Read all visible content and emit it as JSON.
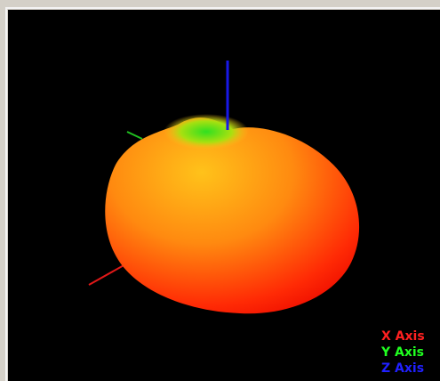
{
  "legend": {
    "items": [
      {
        "label": "X Axis",
        "color": "#ff2020"
      },
      {
        "label": "Y Axis",
        "color": "#20ff20"
      },
      {
        "label": "Z Axis",
        "color": "#2020ff"
      }
    ]
  }
}
